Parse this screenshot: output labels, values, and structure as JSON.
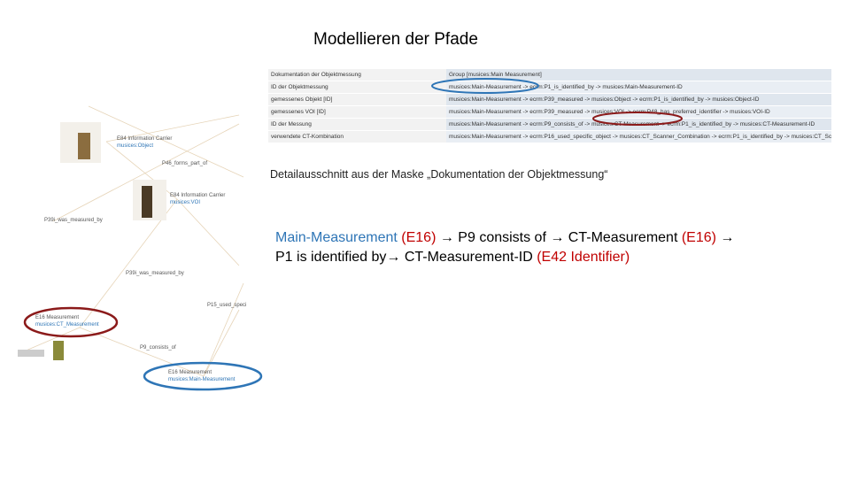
{
  "header": {
    "title": "Modellieren der Pfade"
  },
  "table": {
    "rows": [
      [
        "Dokumentation der Objektmessung",
        "Group [musices:Main Measurement]"
      ],
      [
        "ID der Objektmessung",
        "musices:Main-Measurement -> ecrm:P1_is_identified_by -> musices:Main-Measurement-ID"
      ],
      [
        "gemessenes Objekt [ID]",
        "musices:Main-Measurement -> ecrm:P39_measured -> musices:Object -> ecrm:P1_is_identified_by -> musices:Object-ID"
      ],
      [
        "gemessenes VOI [ID]",
        "musices:Main-Measurement -> ecrm:P39_measured -> musices:VOI -> ecrm:P48_has_preferred_identifier -> musices:VOI-ID"
      ],
      [
        "ID der Messung",
        "musices:Main-Measurement -> ecrm:P9_consists_of -> musices:CT-Measurement -> ecrm:P1_is_identified_by -> musices:CT-Measurement-ID"
      ],
      [
        "verwendete CT-Kombination",
        "musices:Main-Measurement -> ecrm:P16_used_specific_object -> musices:CT_Scanner_Combination -> ecrm:P1_is_identified_by -> musices:CT_Scanner_Combination-ID"
      ]
    ]
  },
  "caption": "Detailausschnitt aus der Maske „Dokumentation der Objektmessung“",
  "path": {
    "lines": [
      [
        {
          "text": "Main-Measurement",
          "color": "#2e75b6"
        },
        {
          "text": " (E16)",
          "color": "#c00000"
        },
        {
          "text": " → P9 consists of → CT-Measurement",
          "color": "#000000"
        },
        {
          "text": " (E16)",
          "color": "#c00000"
        },
        {
          "text": " →",
          "color": "#000000"
        }
      ],
      [
        {
          "text": "P1 is identified by→ CT-Measurement-ID",
          "color": "#000000"
        },
        {
          "text": " (E42 Identifier)",
          "color": "#c00000"
        }
      ]
    ]
  },
  "graph": {
    "nodes": [
      {
        "type": "E84 Information Carrier",
        "id": "musices:Object"
      },
      {
        "type": "E84 Information Carrier",
        "id": "musices:VOI"
      },
      {
        "type": "E16 Measurement",
        "id": "musices:CT_Measurement"
      },
      {
        "type": "E16 Measurement",
        "id": "musices:Main-Measurement"
      }
    ],
    "edges": [
      "P46_forms_part_of",
      "P39i_was_measured_by",
      "P39i_was_measured_by",
      "P15_used_specific_object",
      "P9_consists_of"
    ]
  }
}
